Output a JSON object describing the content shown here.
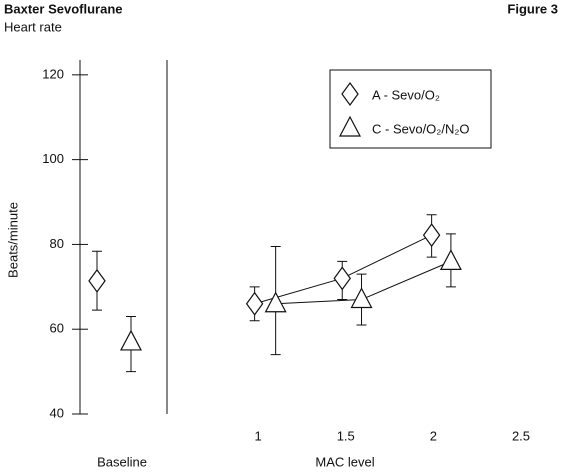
{
  "chart_data": {
    "type": "errorbar",
    "title": "Baxter Sevoflurane",
    "figure_label": "Figure 3",
    "subtitle": "Heart rate",
    "y_label": "Beats/minute",
    "x_label": "MAC level",
    "baseline_label": "Baseline",
    "ylim": [
      40,
      123.5
    ],
    "yticks": [
      40,
      60,
      80,
      100,
      120
    ],
    "xlim": [
      0.48,
      2.5
    ],
    "xticks": [
      1,
      1.5,
      2,
      2.5
    ],
    "series": [
      {
        "name": "A - Sevo/O₂",
        "marker": "diamond",
        "color": "#111111",
        "baseline_value": 71.4,
        "baseline_lower": 64.5,
        "baseline_upper": 78.4,
        "x": [
          0.98,
          1.48,
          1.99
        ],
        "values": [
          66,
          72,
          82.2
        ],
        "lower": [
          62,
          67,
          77
        ],
        "upper": [
          70,
          76,
          87
        ]
      },
      {
        "name": "C - Sevo/O₂/N₂O",
        "marker": "triangle",
        "color": "#111111",
        "baseline_value": 57,
        "baseline_lower": 50,
        "baseline_upper": 63,
        "x": [
          1.1,
          1.59,
          2.1
        ],
        "values": [
          66,
          67,
          76
        ],
        "lower": [
          54,
          61,
          70
        ],
        "upper": [
          79.5,
          73,
          82.5
        ]
      }
    ]
  }
}
